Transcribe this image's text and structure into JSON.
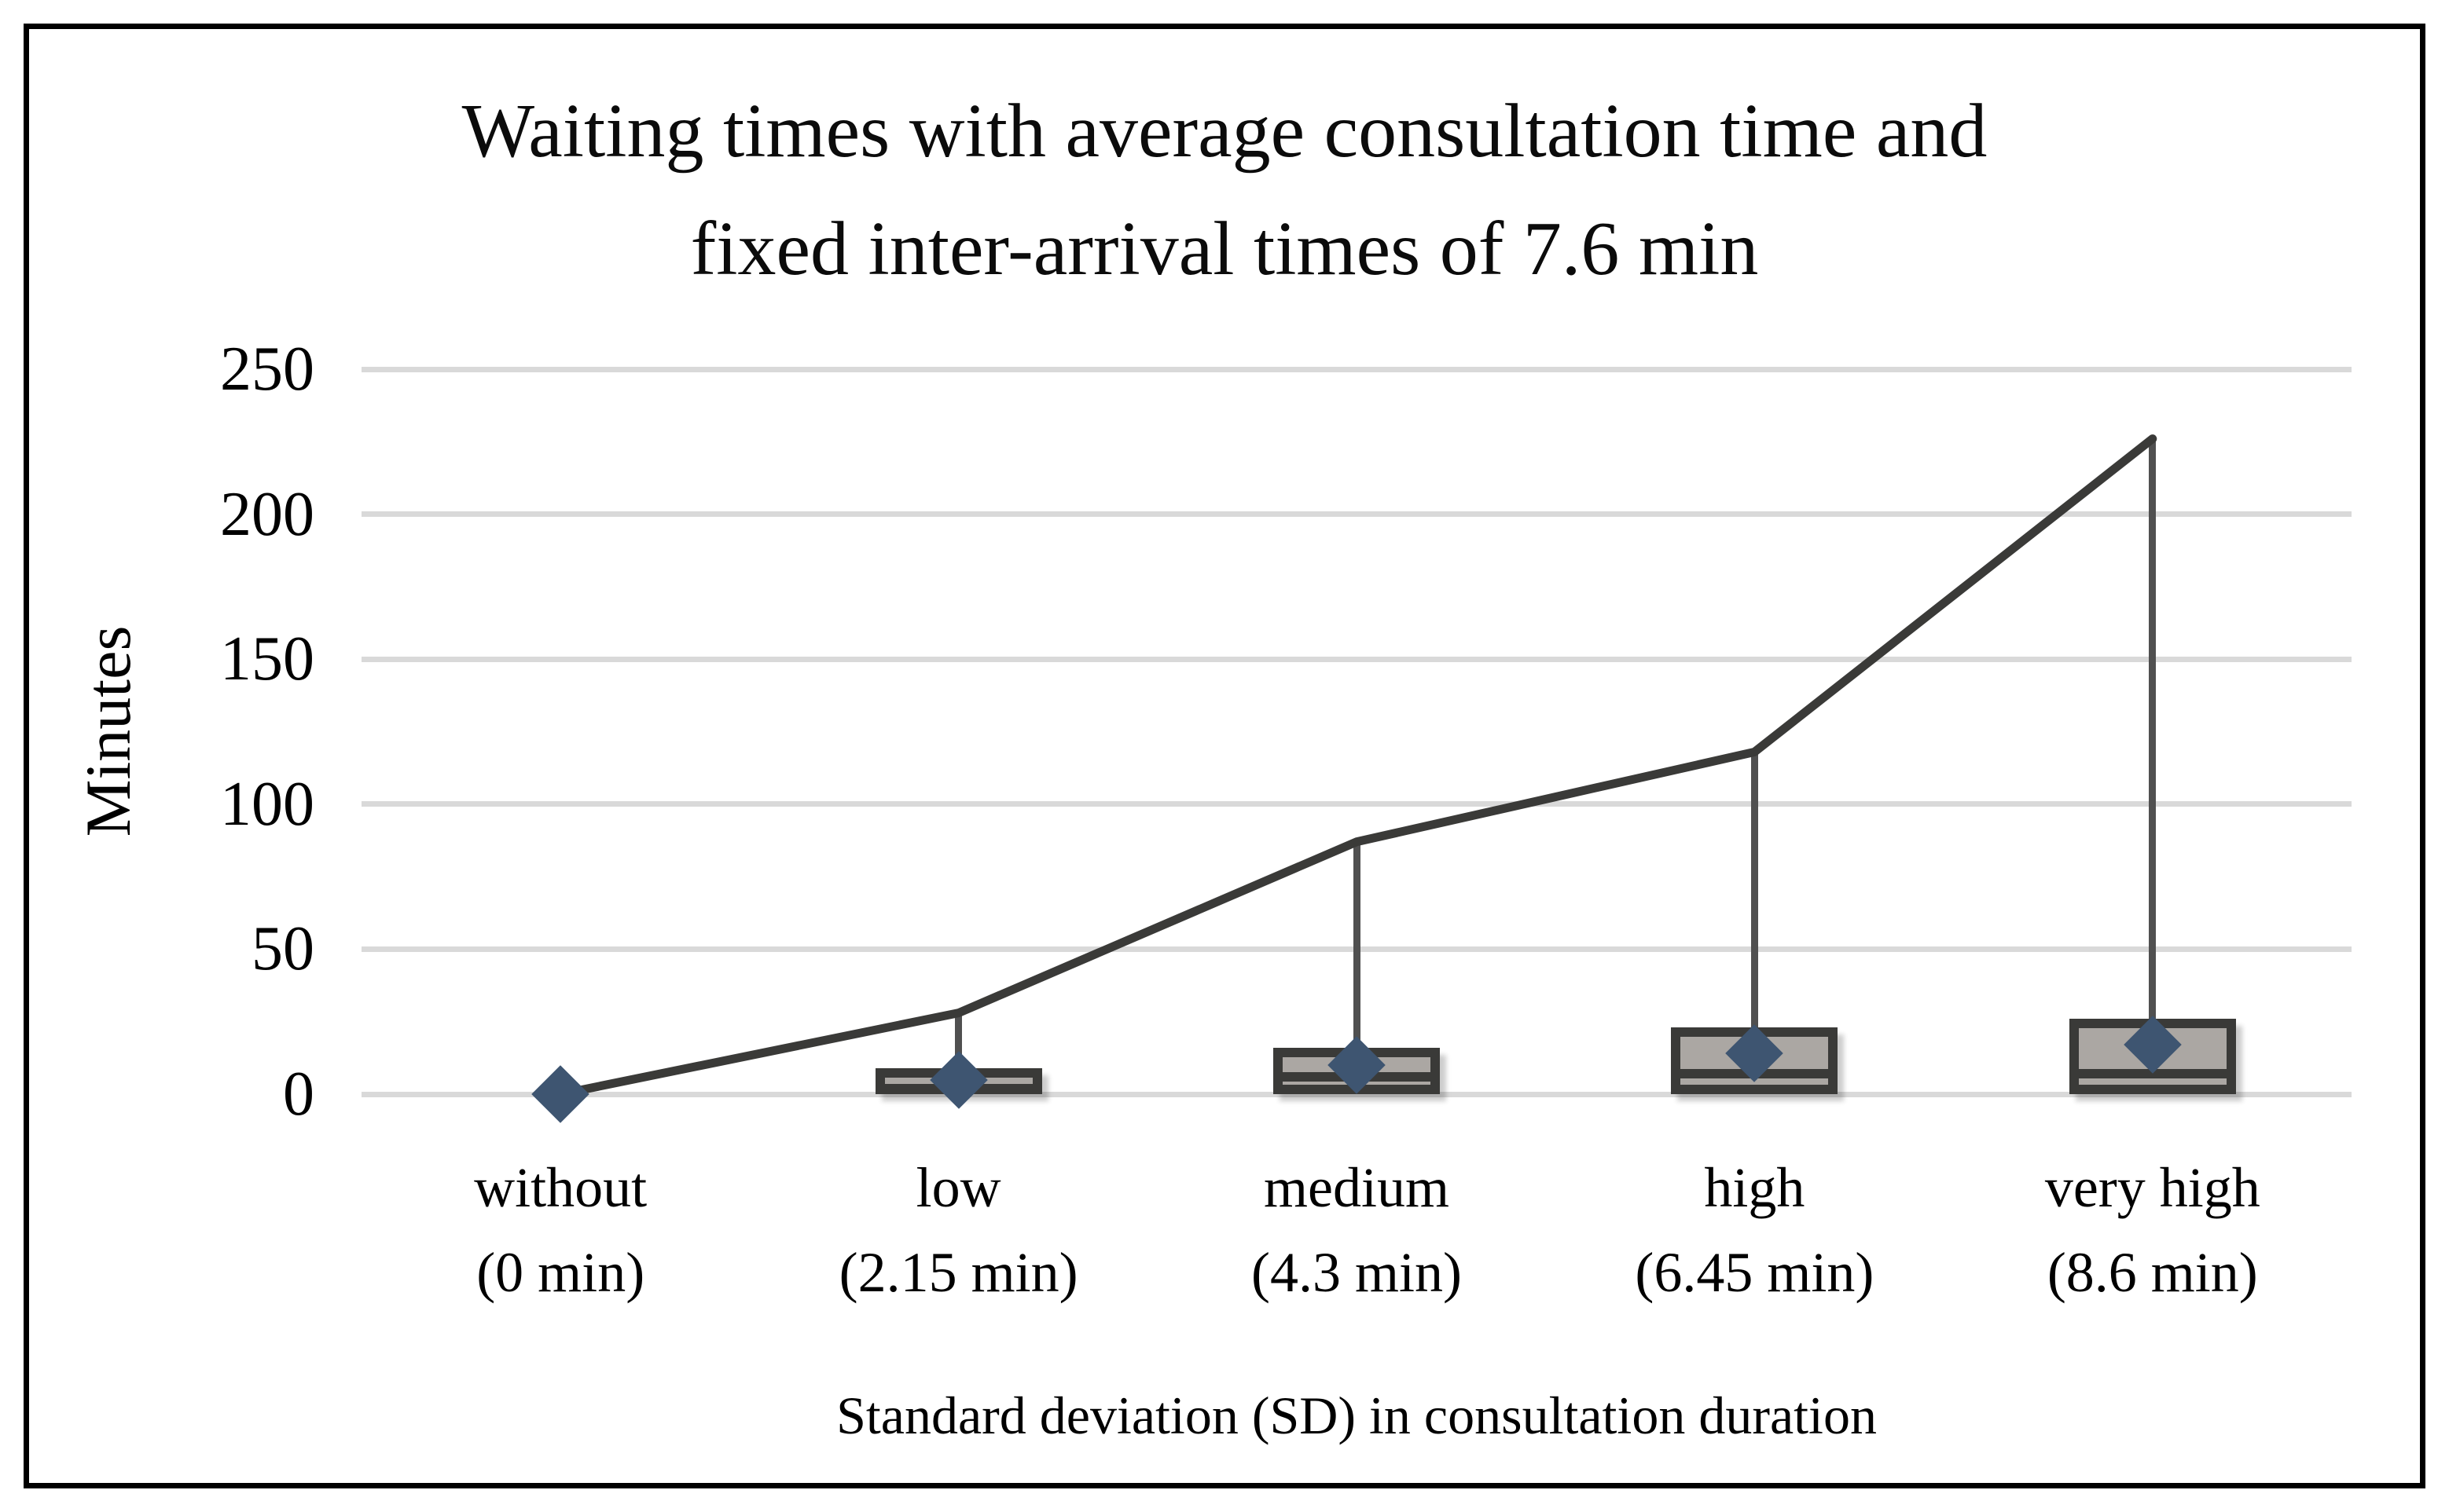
{
  "figure": {
    "border_color": "#000000",
    "background": "#ffffff"
  },
  "chart_data": {
    "type": "boxplot",
    "title": "Waiting times with average consultation time and fixed inter-arrival times of 7.6 min",
    "title_lines": [
      "Waiting times with average consultation time and",
      "fixed inter-arrival times of 7.6 min"
    ],
    "xlabel": "Standard deviation (SD) in consultation duration",
    "ylabel": "Minutes",
    "ylim": [
      0,
      250
    ],
    "yticks": [
      0,
      50,
      100,
      150,
      200,
      250
    ],
    "grid": "horizontal light-gray gridlines, no vertical gridlines",
    "legend": "none",
    "categories": [
      "without",
      "low",
      "medium",
      "high",
      "very high"
    ],
    "category_sublabels": [
      "(0 min)",
      "(2.15 min)",
      "(4.3 min)",
      "(6.45 min)",
      "(8.6 min)"
    ],
    "series": [
      {
        "name": "maximum (whisker top, connected by dark line)",
        "values": [
          0,
          28,
          87,
          118,
          226
        ]
      },
      {
        "name": "upper quartile (box top)",
        "values": [
          0,
          9,
          16,
          23,
          26
        ]
      },
      {
        "name": "median (dark line in box)",
        "values": [
          0,
          2,
          6,
          7,
          7
        ]
      },
      {
        "name": "lower quartile (box bottom)",
        "values": [
          0,
          0,
          0,
          0,
          0
        ]
      },
      {
        "name": "mean (diamond marker)",
        "values": [
          0,
          5,
          10,
          14,
          17
        ]
      }
    ],
    "colors": {
      "max_line": "#3a3a38",
      "whisker": "#505050",
      "box_border": "#3a3a38",
      "box_fill": "#aba7a3",
      "median": "#3a3a38",
      "diamond": "#3e5571",
      "gridline": "#d9d9d9",
      "text": "#0b0b0b"
    }
  }
}
